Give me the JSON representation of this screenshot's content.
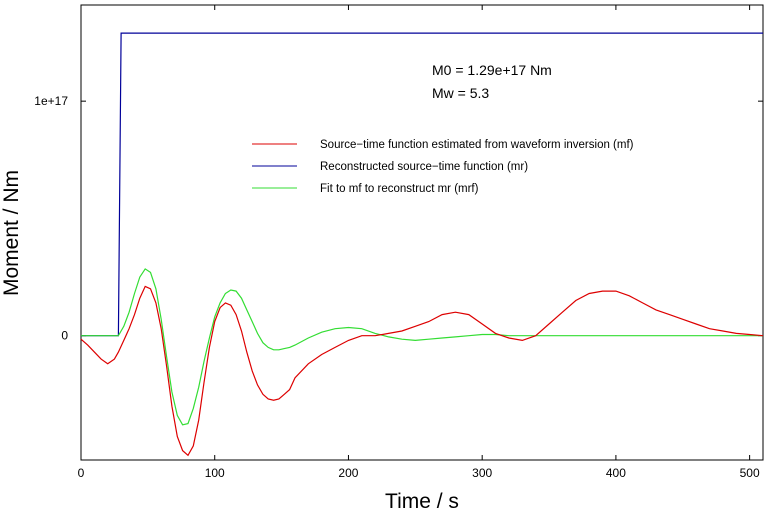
{
  "chart_data": {
    "type": "line",
    "xlabel": "Time / s",
    "ylabel": "Moment / Nm",
    "xlim": [
      0,
      510
    ],
    "ylim": [
      -5.3e+16,
      1.41e+17
    ],
    "x_ticks": [
      0,
      100,
      200,
      300,
      400,
      500
    ],
    "x_tick_labels": [
      "0",
      "100",
      "200",
      "300",
      "400",
      "500"
    ],
    "y_ticks": [
      0,
      1e+17
    ],
    "y_tick_labels": [
      "0",
      "1e+17"
    ],
    "grid": false,
    "legend_position": "upper-right",
    "annotations": [
      "M0 = 1.29e+17 Nm",
      "Mw = 5.3"
    ],
    "series": [
      {
        "name": "Source−time function estimated from waveform inversion (mf)",
        "color": "#dd0000",
        "x": [
          0,
          5,
          10,
          15,
          20,
          25,
          28,
          32,
          36,
          40,
          44,
          48,
          52,
          56,
          60,
          64,
          68,
          72,
          76,
          80,
          84,
          88,
          92,
          96,
          100,
          104,
          108,
          112,
          116,
          120,
          124,
          128,
          132,
          136,
          140,
          144,
          148,
          152,
          156,
          160,
          170,
          180,
          190,
          200,
          210,
          220,
          230,
          240,
          250,
          260,
          270,
          280,
          290,
          300,
          310,
          320,
          330,
          340,
          350,
          360,
          370,
          380,
          390,
          400,
          410,
          420,
          430,
          440,
          450,
          460,
          470,
          480,
          490,
          500,
          510
        ],
        "y": [
          -1500000000000000.0,
          -4000000000000000.0,
          -7000000000000000.0,
          -1e+16,
          -1.2e+16,
          -1e+16,
          -7000000000000000.0,
          -2000000000000000.0,
          3000000000000000.0,
          9000000000000000.0,
          1.6e+16,
          2.1e+16,
          2e+16,
          1.4e+16,
          3000000000000000.0,
          -1.3e+16,
          -3e+16,
          -4.3e+16,
          -4.9e+16,
          -5.1e+16,
          -4.7e+16,
          -3.6e+16,
          -2e+16,
          -5000000000000000.0,
          6000000000000000.0,
          1.2e+16,
          1.4e+16,
          1.3e+16,
          9000000000000000.0,
          2000000000000000.0,
          -7000000000000000.0,
          -1.5e+16,
          -2.1e+16,
          -2.5e+16,
          -2.7e+16,
          -2.75e+16,
          -2.7e+16,
          -2.5e+16,
          -2.3e+16,
          -1.8e+16,
          -1.2e+16,
          -8000000000000000.0,
          -5000000000000000.0,
          -2000000000000000.0,
          0.0,
          0.0,
          1000000000000000.0,
          2000000000000000.0,
          4000000000000000.0,
          6000000000000000.0,
          9000000000000000.0,
          1e+16,
          9000000000000000.0,
          5000000000000000.0,
          1000000000000000.0,
          -1000000000000000.0,
          -2000000000000000.0,
          0.0,
          5000000000000000.0,
          1e+16,
          1.5e+16,
          1.8e+16,
          1.9e+16,
          1.9e+16,
          1.7e+16,
          1.4e+16,
          1.1e+16,
          9000000000000000.0,
          7000000000000000.0,
          5000000000000000.0,
          3000000000000000.0,
          2000000000000000.0,
          1000000000000000.0,
          500000000000000.0,
          0.0
        ]
      },
      {
        "name": "Reconstructed source−time function (mr)",
        "color": "#000099",
        "x": [
          0,
          28,
          30,
          510
        ],
        "y": [
          0,
          0,
          1.29e+17,
          1.29e+17
        ]
      },
      {
        "name": "Fit to mf to reconstruct mr (mrf)",
        "color": "#33dd33",
        "x": [
          0,
          28,
          32,
          36,
          40,
          44,
          48,
          52,
          56,
          60,
          64,
          68,
          72,
          76,
          80,
          84,
          88,
          92,
          96,
          100,
          104,
          108,
          112,
          116,
          120,
          124,
          128,
          132,
          136,
          140,
          144,
          148,
          152,
          156,
          160,
          170,
          180,
          190,
          200,
          210,
          220,
          230,
          240,
          250,
          260,
          270,
          280,
          290,
          300,
          310,
          320,
          330,
          340,
          350,
          360,
          380,
          400,
          420,
          440,
          460,
          480,
          500,
          510
        ],
        "y": [
          0,
          0,
          4000000000000000.0,
          1e+16,
          1.8e+16,
          2.5e+16,
          2.85e+16,
          2.7e+16,
          2e+16,
          7000000000000000.0,
          -9000000000000000.0,
          -2.4e+16,
          -3.4e+16,
          -3.8e+16,
          -3.75e+16,
          -3.1e+16,
          -2.2e+16,
          -1.1e+16,
          -1000000000000000.0,
          8000000000000000.0,
          1.4e+16,
          1.8e+16,
          1.95e+16,
          1.9e+16,
          1.6e+16,
          1.1e+16,
          6000000000000000.0,
          1000000000000000.0,
          -3000000000000000.0,
          -5000000000000000.0,
          -6000000000000000.0,
          -6000000000000000.0,
          -5500000000000000.0,
          -5000000000000000.0,
          -4000000000000000.0,
          -1000000000000000.0,
          1500000000000000.0,
          3000000000000000.0,
          3500000000000000.0,
          3000000000000000.0,
          1000000000000000.0,
          -500000000000000.0,
          -1500000000000000.0,
          -2000000000000000.0,
          -1500000000000000.0,
          -1000000000000000.0,
          -500000000000000.0,
          0.0,
          500000000000000.0,
          500000000000000.0,
          0.0,
          0.0,
          0.0,
          0.0,
          0.0,
          0.0,
          0.0,
          0.0,
          0.0,
          0.0,
          0.0,
          0.0,
          0.0
        ]
      }
    ]
  }
}
